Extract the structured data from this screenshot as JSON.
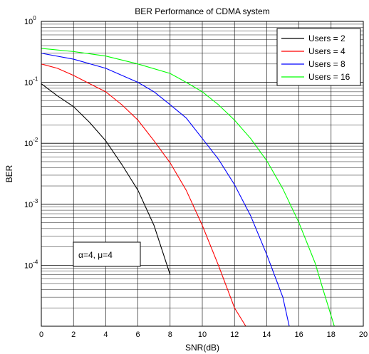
{
  "chart_data": {
    "type": "line",
    "title": "BER Performance of CDMA system",
    "xlabel": "SNR(dB)",
    "ylabel": "BER",
    "x_scale": "linear",
    "y_scale": "log",
    "xlim": [
      0,
      20
    ],
    "ylim": [
      1e-05,
      1
    ],
    "grid": "on",
    "legend_position": "top-right",
    "x_ticks": [
      "0",
      "2",
      "4",
      "6",
      "8",
      "10",
      "12",
      "14",
      "16",
      "18",
      "20"
    ],
    "y_ticks": [
      {
        "base": "10",
        "exp": "0"
      },
      {
        "base": "10",
        "exp": "-1"
      },
      {
        "base": "10",
        "exp": "-2"
      },
      {
        "base": "10",
        "exp": "-3"
      },
      {
        "base": "10",
        "exp": "-4"
      }
    ],
    "annotation": "α=4, μ=4",
    "series": [
      {
        "name": "Users = 2",
        "color": "#000000",
        "x": [
          0,
          1,
          2,
          3,
          4,
          5,
          6,
          7,
          8
        ],
        "y": [
          0.095,
          0.06,
          0.04,
          0.022,
          0.011,
          0.0045,
          0.0017,
          0.00045,
          7e-05
        ]
      },
      {
        "name": "Users = 4",
        "color": "#ff0000",
        "x": [
          0,
          1,
          2,
          3,
          4,
          5,
          6,
          7,
          8,
          9,
          10,
          11,
          12,
          12.7
        ],
        "y": [
          0.2,
          0.17,
          0.13,
          0.095,
          0.07,
          0.043,
          0.024,
          0.011,
          0.0048,
          0.0017,
          0.00045,
          0.0001,
          2e-05,
          1e-05
        ]
      },
      {
        "name": "Users = 8",
        "color": "#0000ff",
        "x": [
          0,
          2,
          4,
          6,
          7,
          8,
          9,
          10,
          11,
          12,
          13,
          14,
          15,
          15.4
        ],
        "y": [
          0.3,
          0.24,
          0.17,
          0.1,
          0.07,
          0.043,
          0.026,
          0.012,
          0.0055,
          0.0021,
          0.00065,
          0.00015,
          3e-05,
          1e-05
        ]
      },
      {
        "name": "Users = 16",
        "color": "#00ff00",
        "x": [
          0,
          2,
          4,
          6,
          8,
          9,
          10,
          11,
          12,
          13,
          14,
          15,
          16,
          17,
          17.5,
          18.2
        ],
        "y": [
          0.36,
          0.32,
          0.27,
          0.2,
          0.14,
          0.1,
          0.07,
          0.043,
          0.024,
          0.012,
          0.0052,
          0.0018,
          0.0005,
          0.00011,
          4e-05,
          1e-05
        ]
      }
    ]
  }
}
